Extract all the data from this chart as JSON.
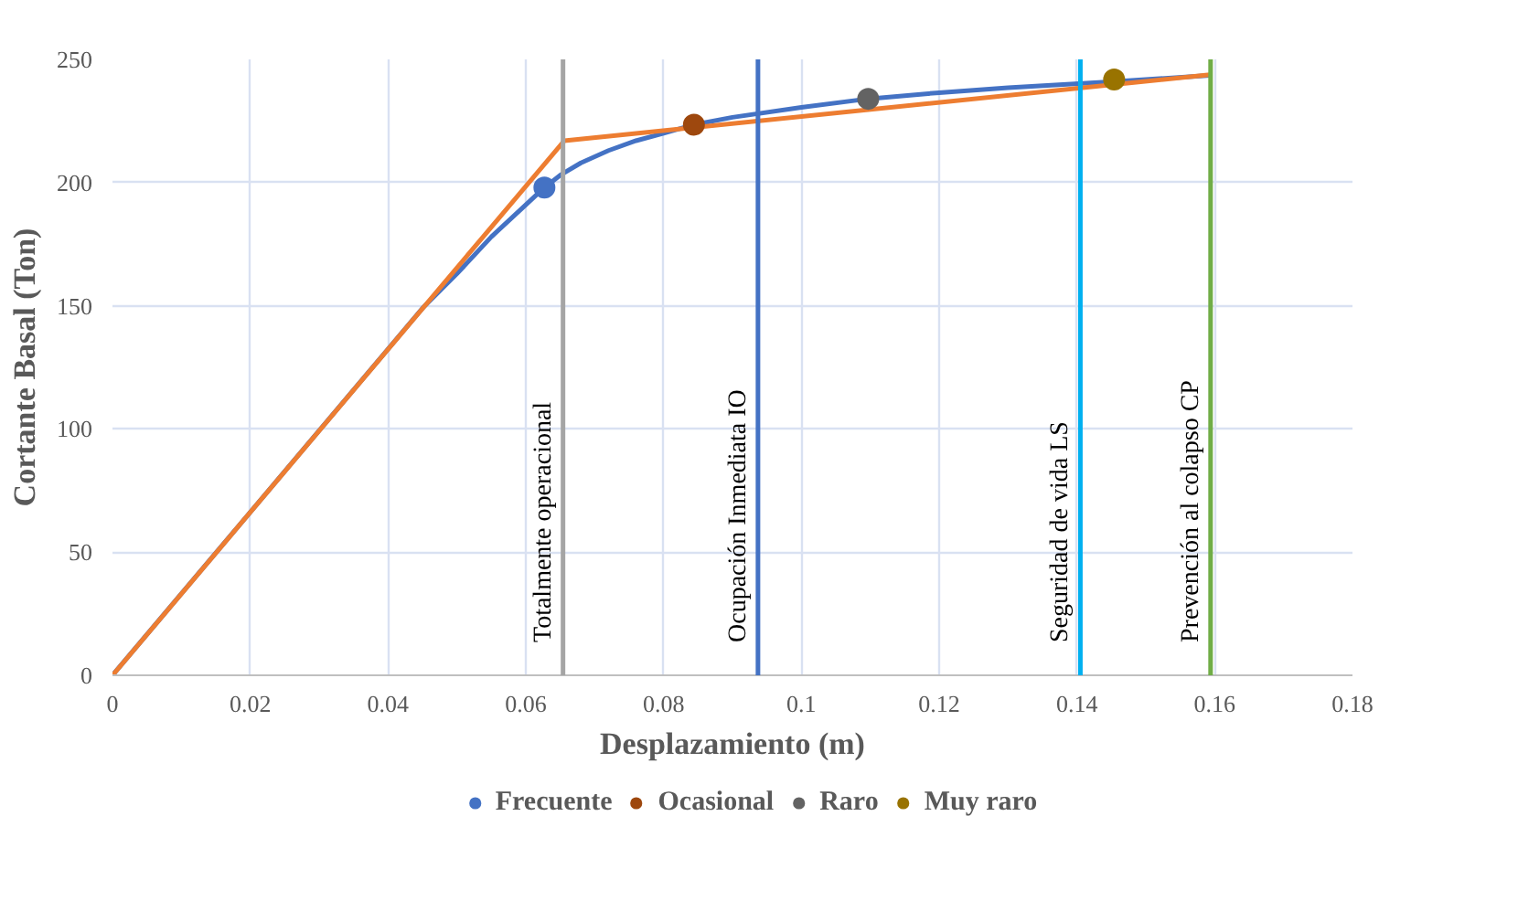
{
  "chart_data": {
    "type": "line",
    "xlabel": "Desplazamiento (m)",
    "ylabel": "Cortante Basal (Ton)",
    "xlim": [
      0,
      0.18
    ],
    "xticks": [
      0,
      0.02,
      0.04,
      0.06,
      0.08,
      0.1,
      0.12,
      0.14,
      0.16,
      0.18
    ],
    "ylim": [
      0,
      250
    ],
    "yticks": [
      0,
      50,
      100,
      150,
      200,
      250
    ],
    "grid": true,
    "legend": "bottom",
    "series": [
      {
        "color": "#4472c4",
        "x": [
          0,
          0.045,
          0.05,
          0.055,
          0.06,
          0.0627,
          0.065,
          0.068,
          0.072,
          0.076,
          0.08,
          0.0844,
          0.09,
          0.1,
          0.1097,
          0.12,
          0.13,
          0.1454,
          0.1593
        ],
        "values": [
          0,
          149,
          163,
          178,
          191,
          198,
          203,
          208,
          213,
          217,
          220,
          223.5,
          226.5,
          230.5,
          234,
          236.5,
          238.5,
          241,
          243.5
        ]
      },
      {
        "color": "#ed7d31",
        "x": [
          0,
          0.0656,
          0.1593
        ],
        "values": [
          0,
          217,
          243.8
        ]
      },
      {
        "type": "scatter",
        "name": "Frecuente",
        "color": "#4472c4",
        "marker": "circle",
        "x": [
          0.0627
        ],
        "values": [
          198
        ]
      },
      {
        "type": "scatter",
        "name": "Ocasional",
        "color": "#9e480e",
        "marker": "circle",
        "x": [
          0.0844
        ],
        "values": [
          223.5
        ]
      },
      {
        "type": "scatter",
        "name": "Raro",
        "color": "#636363",
        "marker": "circle",
        "x": [
          0.1097
        ],
        "values": [
          234
        ]
      },
      {
        "type": "scatter",
        "name": "Muy raro",
        "color": "#997300",
        "marker": "circle",
        "x": [
          0.1454
        ],
        "values": [
          241.8
        ]
      }
    ],
    "ref_lines": [
      {
        "axis": "x",
        "value": 0.0654,
        "label": "Totalmente operacional",
        "color": "#a5a5a5"
      },
      {
        "axis": "x",
        "value": 0.0937,
        "label": "Ocupación Inmediata IO",
        "color": "#4472c4"
      },
      {
        "axis": "x",
        "value": 0.1405,
        "label": "Seguridad de vida LS",
        "color": "#00b0f0"
      },
      {
        "axis": "x",
        "value": 0.1594,
        "label": "Prevención al colapso CP",
        "color": "#70ad47"
      }
    ]
  }
}
